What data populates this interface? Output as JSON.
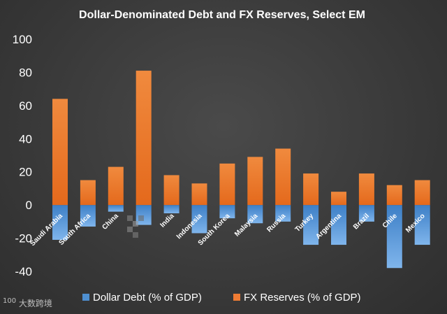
{
  "chart_data": {
    "type": "bar",
    "stacked": true,
    "title": "Dollar-Denominated  Debt and  FX Reserves, Select EM",
    "xlabel": "",
    "ylabel": "",
    "ylim": [
      -40,
      100
    ],
    "yticks": [
      100,
      80,
      60,
      40,
      20,
      0,
      -20,
      -40
    ],
    "grid": false,
    "legend_position": "bottom",
    "categories": [
      "Saudi Arabia",
      "South Africa",
      "China",
      "",
      "India",
      "Indonesia",
      "South Korea",
      "Malaysia",
      "Russia",
      "Turkey",
      "Argentina",
      "Brazil",
      "Chile",
      "Mexico"
    ],
    "series": [
      {
        "name": "Dollar Debt (% of GDP)",
        "color": "#4e8fd0",
        "values": [
          -21,
          -13,
          -4,
          -12,
          -5,
          -17,
          -8,
          -11,
          -10,
          -24,
          -24,
          -10,
          -38,
          -24
        ]
      },
      {
        "name": "FX Reserves (% of GDP)",
        "color": "#ef7c34",
        "values": [
          64,
          15,
          23,
          81,
          18,
          13,
          25,
          29,
          34,
          19,
          8,
          19,
          12,
          15
        ]
      }
    ]
  },
  "watermark": "大数跨境",
  "watermark_logo": "100"
}
